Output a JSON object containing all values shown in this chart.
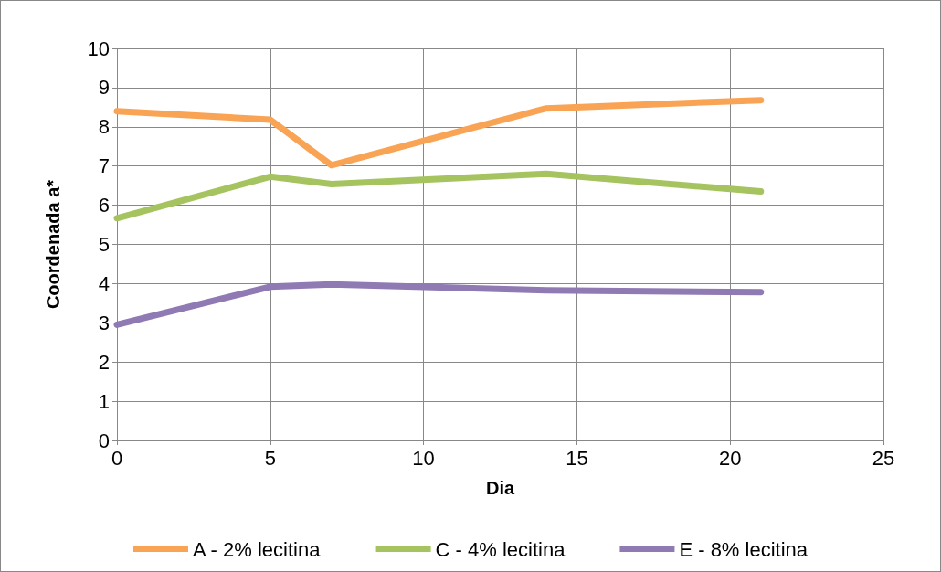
{
  "chart_data": {
    "type": "line",
    "xlabel": "Dia",
    "ylabel": "Coordenada a*",
    "x": [
      0,
      5,
      7,
      14,
      21
    ],
    "series": [
      {
        "name": "A - 2% lecitina",
        "color": "#f9a455",
        "values": [
          8.4,
          8.18,
          7.02,
          8.47,
          8.68
        ]
      },
      {
        "name": "C - 4% lecitina",
        "color": "#a5c45f",
        "values": [
          5.67,
          6.73,
          6.54,
          6.8,
          6.35
        ]
      },
      {
        "name": "E - 8% lecitina",
        "color": "#8f7ab3",
        "values": [
          2.95,
          3.92,
          3.98,
          3.83,
          3.78
        ]
      }
    ],
    "xlim": [
      0,
      25
    ],
    "xticks": [
      0,
      5,
      10,
      15,
      20,
      25
    ],
    "ylim": [
      0,
      10
    ],
    "yticks": [
      0,
      1,
      2,
      3,
      4,
      5,
      6,
      7,
      8,
      9,
      10
    ],
    "grid": true,
    "legend": "bottom",
    "marker": "none",
    "line_style": "solid"
  }
}
